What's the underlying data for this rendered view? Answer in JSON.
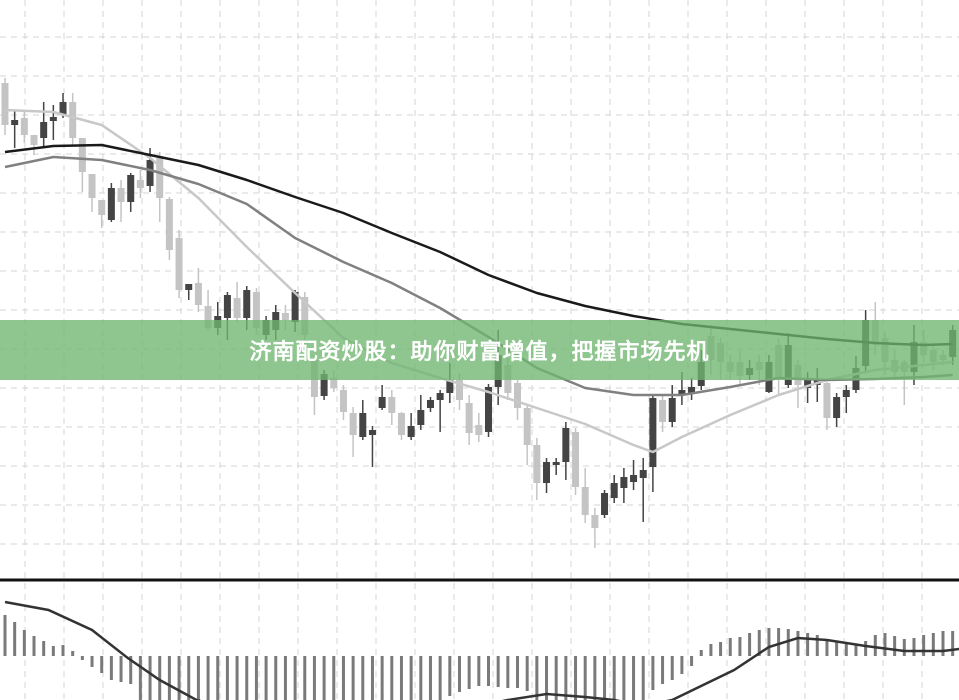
{
  "banner": {
    "text": "济南配资炒股：助你财富增值，把握市场先机",
    "color": "#7dbf7d"
  },
  "chart_data": [
    {
      "type": "candlestick",
      "title": "",
      "grid": true,
      "colors": {
        "up": "#444444",
        "down": "#c4c4c4",
        "ma_fast": "#c8c8c8",
        "ma_mid": "#808080",
        "ma_slow": "#1a1a1a"
      },
      "ohlc": [
        [
          51.7,
          52.2,
          46.5,
          47.5
        ],
        [
          47.5,
          49,
          45.2,
          48.0
        ],
        [
          48.2,
          49,
          45.7,
          46.5
        ],
        [
          46.5,
          46.5,
          44.5,
          45.5
        ],
        [
          46.2,
          49.8,
          45.2,
          47.8
        ],
        [
          47.9,
          49.5,
          46,
          48.3
        ],
        [
          48.5,
          50.7,
          48.2,
          49.8
        ],
        [
          49.8,
          50.7,
          45.5,
          46.2
        ],
        [
          46.2,
          46.2,
          40.8,
          42.8
        ],
        [
          42.6,
          42.6,
          38.8,
          40.2
        ],
        [
          40,
          40,
          37.2,
          38.5
        ],
        [
          38,
          41.7,
          37.8,
          41.2
        ],
        [
          41.2,
          42,
          37.8,
          39.8
        ],
        [
          39.8,
          42.7,
          38.8,
          42.5
        ],
        [
          42,
          43,
          40.2,
          41.2
        ],
        [
          41.4,
          45.2,
          40.8,
          44
        ],
        [
          44.2,
          44.8,
          37.8,
          40.2
        ],
        [
          40.1,
          40.3,
          34,
          35
        ],
        [
          36.2,
          37,
          30.2,
          31
        ],
        [
          31,
          31.6,
          30,
          31.6
        ],
        [
          31.7,
          33.2,
          28.8,
          29.5
        ],
        [
          29.4,
          31,
          27,
          27.2
        ],
        [
          27.2,
          29.8,
          26.5,
          28.4
        ],
        [
          28.2,
          30.8,
          26,
          30.5
        ],
        [
          30.2,
          31.8,
          27.8,
          28.2
        ],
        [
          28.2,
          31.4,
          27,
          31
        ],
        [
          30.8,
          31.2,
          26.5,
          27.2
        ],
        [
          26.5,
          28.4,
          26,
          28
        ],
        [
          27,
          29.5,
          26,
          28.8
        ],
        [
          28.7,
          29.5,
          27,
          28
        ],
        [
          27.8,
          31,
          26.8,
          30.8
        ],
        [
          30.3,
          30.8,
          25.5,
          26.5
        ],
        [
          24,
          24.5,
          18.5,
          20.3
        ],
        [
          20.4,
          23,
          20,
          22.6
        ],
        [
          22.2,
          23,
          20.8,
          21.2
        ],
        [
          21,
          21.5,
          18,
          18.8
        ],
        [
          18.7,
          19.3,
          14.3,
          16.5
        ],
        [
          16.3,
          20,
          16,
          18.7
        ],
        [
          16.5,
          17.4,
          13.3,
          17
        ],
        [
          19.2,
          21.5,
          19,
          20.3
        ],
        [
          20.3,
          21,
          17.5,
          18.7
        ],
        [
          18.7,
          18.8,
          16,
          16.5
        ],
        [
          16.3,
          18.7,
          16,
          17.4
        ],
        [
          17.5,
          20.5,
          17,
          19
        ],
        [
          19.2,
          20.3,
          18.8,
          20
        ],
        [
          20,
          21,
          16.8,
          20.7
        ],
        [
          20.7,
          23.7,
          19.7,
          22
        ],
        [
          22,
          22.7,
          19,
          20
        ],
        [
          19.7,
          20.5,
          15.5,
          16.7
        ],
        [
          17.5,
          18.7,
          15.8,
          16.5
        ],
        [
          16.8,
          21.6,
          16.3,
          21.3
        ],
        [
          21.3,
          27,
          19.5,
          24.5
        ],
        [
          23.5,
          24.5,
          20,
          20.7
        ],
        [
          21.7,
          22,
          18,
          19.2
        ],
        [
          19.2,
          19.5,
          13.5,
          15.5
        ],
        [
          15.5,
          16.2,
          10,
          11.7
        ],
        [
          11.7,
          14.2,
          10.7,
          13.8
        ],
        [
          13.5,
          14.2,
          12.5,
          13.8
        ],
        [
          13.8,
          17.8,
          12,
          17.2
        ],
        [
          16.8,
          17.2,
          10.5,
          11.3
        ],
        [
          11.3,
          13.2,
          7.7,
          8.5
        ],
        [
          8.5,
          9.2,
          5.2,
          7.2
        ],
        [
          8.5,
          11,
          8.2,
          10.7
        ],
        [
          10.2,
          12.5,
          9.7,
          11.7
        ],
        [
          11.2,
          13.2,
          9.7,
          12.3
        ],
        [
          11.8,
          14,
          11,
          12.5
        ],
        [
          12.2,
          14.2,
          7.8,
          13
        ],
        [
          13.3,
          20.5,
          10.8,
          20.2
        ],
        [
          20,
          20.5,
          16.8,
          17.8
        ],
        [
          17.8,
          21.5,
          17.3,
          20.2
        ],
        [
          20.5,
          22.8,
          19.5,
          21
        ],
        [
          20.7,
          22.2,
          20,
          21.3
        ],
        [
          21.4,
          25,
          21,
          23.8
        ],
        [
          26.4,
          27.5,
          22.5,
          24
        ],
        [
          25.7,
          26.2,
          22,
          23.8
        ],
        [
          23.8,
          24.5,
          22,
          22.8
        ],
        [
          23.8,
          25,
          21.5,
          22.4
        ],
        [
          22.5,
          24,
          22,
          23.2
        ],
        [
          23.8,
          24.5,
          21.5,
          23
        ],
        [
          20.8,
          24.5,
          20.7,
          23.8
        ],
        [
          25.5,
          26.2,
          20.5,
          22.2
        ],
        [
          21.5,
          26.7,
          21.2,
          25.5
        ],
        [
          23.5,
          24,
          19.2,
          21.5
        ],
        [
          21.2,
          22.8,
          19.7,
          22
        ],
        [
          21.5,
          23.2,
          19.8,
          22
        ],
        [
          21.7,
          21.8,
          17,
          18.2
        ],
        [
          18.2,
          20.7,
          17.3,
          20.3
        ],
        [
          20.3,
          21.5,
          18.7,
          21
        ],
        [
          21,
          24.4,
          20.7,
          23.2
        ],
        [
          23.4,
          29,
          22.8,
          28
        ],
        [
          28,
          29.8,
          24.5,
          25.5
        ],
        [
          26.2,
          26.8,
          22.5,
          23.8
        ],
        [
          24,
          25,
          22,
          22.8
        ],
        [
          23.8,
          24,
          19.5,
          22.8
        ],
        [
          22.8,
          27.5,
          21.5,
          25.8
        ],
        [
          25.8,
          27,
          23.8,
          24.5
        ],
        [
          25,
          25.5,
          23,
          23.8
        ],
        [
          24.5,
          25,
          23.5,
          24
        ],
        [
          24.3,
          27.5,
          23.5,
          27
        ]
      ],
      "moving_averages": [
        {
          "key": "ma_fast",
          "points": [
            [
              0,
              49
            ],
            [
              5,
              48.8
            ],
            [
              10,
              47.5
            ],
            [
              15,
              44.2
            ],
            [
              20,
              40.2
            ],
            [
              25,
              35.3
            ],
            [
              30,
              30.7
            ],
            [
              35,
              26.2
            ],
            [
              40,
              23.7
            ],
            [
              45,
              22.2
            ],
            [
              50,
              20.8
            ],
            [
              55,
              19.2
            ],
            [
              60,
              17.6
            ],
            [
              65,
              15.5
            ],
            [
              67,
              14.8
            ],
            [
              70,
              16.3
            ],
            [
              75,
              18.5
            ],
            [
              80,
              20.5
            ],
            [
              85,
              22
            ],
            [
              90,
              23
            ],
            [
              95,
              23.5
            ],
            [
              98,
              23.8
            ]
          ]
        },
        {
          "key": "ma_mid",
          "points": [
            [
              0,
              43.3
            ],
            [
              5,
              44.3
            ],
            [
              10,
              44
            ],
            [
              15,
              43
            ],
            [
              20,
              41.6
            ],
            [
              25,
              39.6
            ],
            [
              30,
              36.2
            ],
            [
              35,
              33.8
            ],
            [
              40,
              31.7
            ],
            [
              45,
              29.2
            ],
            [
              50,
              26.3
            ],
            [
              55,
              23.2
            ],
            [
              60,
              21.2
            ],
            [
              65,
              20.5
            ],
            [
              70,
              20.5
            ],
            [
              75,
              21.3
            ],
            [
              80,
              22.2
            ],
            [
              85,
              22
            ],
            [
              90,
              22.1
            ],
            [
              95,
              22.3
            ],
            [
              98,
              22.5
            ]
          ]
        },
        {
          "key": "ma_slow",
          "points": [
            [
              0,
              44.8
            ],
            [
              5,
              45.4
            ],
            [
              10,
              45.5
            ],
            [
              15,
              44.5
            ],
            [
              20,
              43.5
            ],
            [
              25,
              42
            ],
            [
              30,
              40.3
            ],
            [
              35,
              38.7
            ],
            [
              40,
              36.7
            ],
            [
              45,
              34.8
            ],
            [
              50,
              32.5
            ],
            [
              55,
              30.7
            ],
            [
              60,
              29.4
            ],
            [
              65,
              28.4
            ],
            [
              70,
              27.6
            ],
            [
              75,
              27.1
            ],
            [
              80,
              26.6
            ],
            [
              85,
              26.1
            ],
            [
              90,
              25.7
            ],
            [
              95,
              25.5
            ],
            [
              98,
              25.6
            ]
          ]
        }
      ]
    },
    {
      "type": "bar",
      "title": "",
      "colors": {
        "histogram": "#7a7a7a",
        "signal": "#333333"
      },
      "histogram": [
        4.1,
        3.4,
        2.6,
        2.0,
        1.5,
        1.0,
        1.1,
        0.5,
        -0.4,
        -1.1,
        -1.7,
        -2.4,
        -2.6,
        -2.8,
        -4.8,
        -5.2,
        -5.6,
        -6.0,
        -6.4,
        -6.6,
        -6.8,
        -7.0,
        -7.2,
        -7.2,
        -7.2,
        -7.0,
        -7.0,
        -6.8,
        -6.6,
        -6.4,
        -6.2,
        -6.0,
        -5.8,
        -5.6,
        -5.5,
        -5.4,
        -5.2,
        -5.0,
        -5.0,
        -4.8,
        -4.8,
        -4.7,
        -4.6,
        -4.6,
        -4.5,
        -4.4,
        -4.0,
        -3.6,
        -3.3,
        -3.0,
        -3.0,
        -3.1,
        -3.2,
        -3.2,
        -3.5,
        -4.6,
        -5.0,
        -5.5,
        -5.8,
        -6.0,
        -6.2,
        -6.2,
        -6.0,
        -5.8,
        -5.5,
        -5.0,
        -4.5,
        -3.4,
        -2.8,
        -2.4,
        -1.8,
        -1.0,
        0.6,
        1.2,
        1.4,
        1.8,
        1.9,
        2.3,
        2.6,
        2.8,
        2.8,
        2.7,
        2.5,
        2.3,
        2.1,
        1.6,
        1.4,
        1.3,
        1.1,
        1.5,
        2.1,
        2.3,
        2.0,
        1.7,
        1.8,
        2.1,
        2.3,
        2.5,
        2.5
      ],
      "signal": [
        [
          0,
          5.4
        ],
        [
          4.5,
          4.6
        ],
        [
          9,
          2.6
        ],
        [
          12.7,
          -0.2
        ],
        [
          16,
          -2.4
        ],
        [
          19.8,
          -4.4
        ],
        [
          28,
          -6.5
        ],
        [
          36,
          -7
        ],
        [
          44,
          -6
        ],
        [
          52,
          -4.4
        ],
        [
          56,
          -3.8
        ],
        [
          60,
          -4.1
        ],
        [
          63,
          -4.4
        ],
        [
          66,
          -5
        ],
        [
          69,
          -4.4
        ],
        [
          75.4,
          -1.4
        ],
        [
          79,
          0.9
        ],
        [
          82,
          1.8
        ],
        [
          85,
          1.6
        ],
        [
          89,
          1.0
        ],
        [
          93,
          0.5
        ],
        [
          97,
          0.5
        ],
        [
          98.7,
          0.7
        ]
      ]
    }
  ]
}
